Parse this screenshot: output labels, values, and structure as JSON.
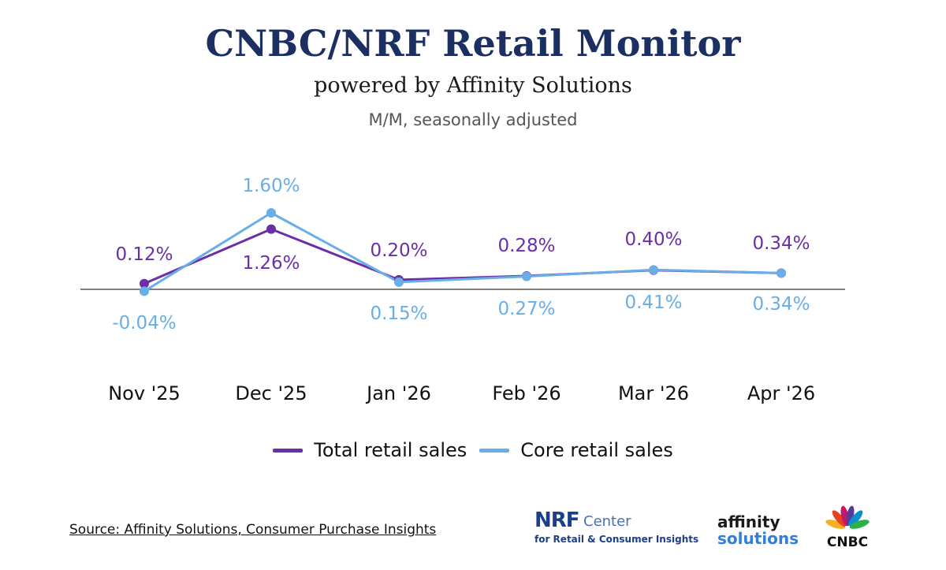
{
  "header": {
    "title": "CNBC/NRF Retail Monitor",
    "subtitle": "powered by Affinity Solutions",
    "note": "M/M, seasonally adjusted"
  },
  "chart_data": {
    "type": "line",
    "categories": [
      "Nov '25",
      "Dec '25",
      "Jan '26",
      "Feb '26",
      "Mar '26",
      "Apr '26"
    ],
    "series": [
      {
        "name": "Total retail sales",
        "color": "#6a2fa8",
        "values": [
          0.12,
          1.26,
          0.2,
          0.28,
          0.4,
          0.34
        ],
        "labels": [
          "0.12%",
          "1.26%",
          "0.20%",
          "0.28%",
          "0.40%",
          "0.34%"
        ]
      },
      {
        "name": "Core retail sales",
        "color": "#6aaee8",
        "values": [
          -0.04,
          1.6,
          0.15,
          0.27,
          0.41,
          0.34
        ],
        "labels": [
          "-0.04%",
          "1.60%",
          "0.15%",
          "0.27%",
          "0.41%",
          "0.34%"
        ]
      }
    ],
    "ylim": [
      -0.9,
      2.1
    ],
    "grid": false,
    "zero_line": true,
    "legend": "bottom"
  },
  "legend": {
    "items": [
      {
        "label": "Total retail sales",
        "color": "#6a2fa8"
      },
      {
        "label": "Core retail sales",
        "color": "#6aaee8"
      }
    ]
  },
  "footer": {
    "source": "Source: Affinity Solutions, Consumer Purchase Insights",
    "logos": {
      "nrf_main": "NRF",
      "nrf_center": "Center",
      "nrf_sub": "for Retail & Consumer Insights",
      "affinity_line1": "affinity",
      "affinity_line2": "solutions",
      "cnbc": "CNBC"
    }
  }
}
